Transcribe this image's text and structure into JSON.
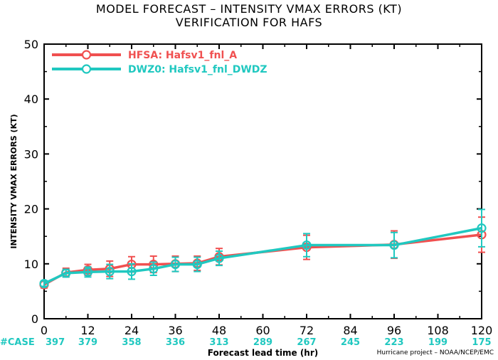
{
  "page": {
    "title_line1": "MODEL FORECAST – INTENSITY VMAX ERRORS (KT)",
    "title_line2": "VERIFICATION FOR HAFS",
    "footer": "Hurricane project – NOAA/NCEP/EMC"
  },
  "chart_data": {
    "type": "line",
    "ylabel": "INTENSITY VMAX ERRORS (KT)",
    "xlabel": "Forecast lead time (hr)",
    "xlim": [
      0,
      120
    ],
    "ylim": [
      0,
      50
    ],
    "x_ticks": [
      0,
      12,
      24,
      36,
      48,
      60,
      72,
      84,
      96,
      108,
      120
    ],
    "y_ticks": [
      0,
      10,
      20,
      30,
      40,
      50
    ],
    "grid": false,
    "legend_position": "top-left",
    "case_label": "#CASE",
    "case_lead_times": [
      0,
      12,
      24,
      36,
      48,
      60,
      72,
      84,
      96,
      108,
      120
    ],
    "case_counts": [
      397,
      379,
      358,
      336,
      313,
      289,
      267,
      245,
      223,
      199,
      175
    ],
    "series": [
      {
        "name": "HFSA: Hafsv1_fnl_A",
        "color": "#f05050",
        "x": [
          0,
          6,
          12,
          18,
          24,
          30,
          36,
          42,
          48,
          72,
          96,
          120
        ],
        "y": [
          6.2,
          8.4,
          8.9,
          9.1,
          9.9,
          9.9,
          10.0,
          10.1,
          11.3,
          13.0,
          13.5,
          15.3
        ],
        "err_low": [
          5.6,
          7.6,
          7.9,
          7.7,
          8.5,
          8.4,
          8.6,
          8.8,
          9.8,
          10.8,
          11.0,
          12.1
        ],
        "err_high": [
          6.8,
          9.2,
          9.9,
          10.5,
          11.3,
          11.4,
          11.4,
          11.4,
          12.8,
          15.2,
          16.0,
          18.5
        ]
      },
      {
        "name": "DWZ0: Hafsv1_fnl_DWDZ",
        "color": "#20c8c0",
        "x": [
          0,
          6,
          12,
          18,
          24,
          30,
          36,
          42,
          48,
          72,
          96,
          120
        ],
        "y": [
          6.4,
          8.3,
          8.5,
          8.6,
          8.6,
          9.1,
          9.9,
          9.9,
          11.0,
          13.4,
          13.4,
          16.5
        ],
        "err_low": [
          5.9,
          7.6,
          7.6,
          7.3,
          7.2,
          7.9,
          8.6,
          8.6,
          9.7,
          11.3,
          11.1,
          13.1
        ],
        "err_high": [
          6.9,
          9.0,
          9.4,
          9.9,
          10.0,
          10.3,
          11.2,
          11.2,
          12.3,
          15.5,
          15.7,
          19.9
        ]
      }
    ]
  }
}
